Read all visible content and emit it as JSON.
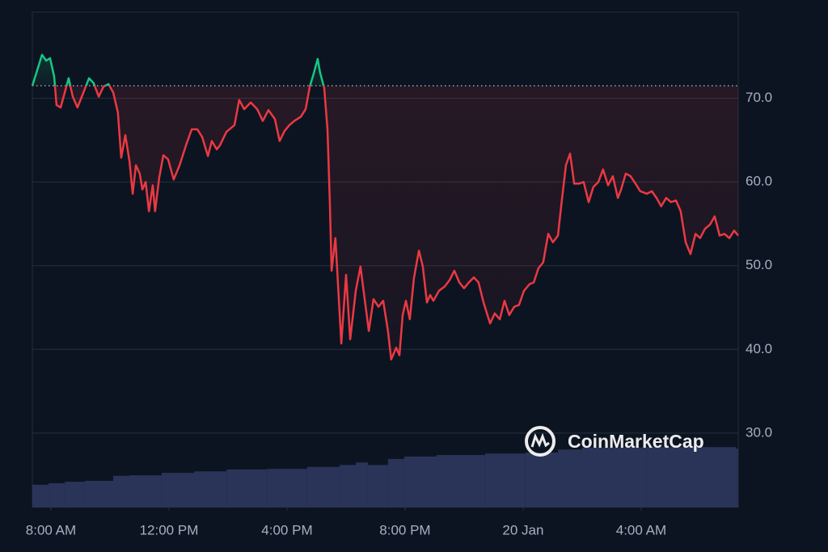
{
  "chart_data": {
    "type": "line",
    "x": [
      7.37,
      7.7,
      7.84,
      7.97,
      8.11,
      8.19,
      8.33,
      8.47,
      8.6,
      8.74,
      8.9,
      9.07,
      9.29,
      9.45,
      9.62,
      9.78,
      9.95,
      10.11,
      10.27,
      10.38,
      10.52,
      10.66,
      10.77,
      10.88,
      11.01,
      11.1,
      11.21,
      11.32,
      11.45,
      11.53,
      11.67,
      11.81,
      11.97,
      12.16,
      12.36,
      12.58,
      12.77,
      12.96,
      13.12,
      13.32,
      13.45,
      13.62,
      13.73,
      13.95,
      14.22,
      14.38,
      14.55,
      14.77,
      14.99,
      15.18,
      15.37,
      15.59,
      15.75,
      15.92,
      16.08,
      16.25,
      16.47,
      16.63,
      16.77,
      16.9,
      17.04,
      17.12,
      17.26,
      17.37,
      17.45,
      17.51,
      17.64,
      17.84,
      18.0,
      18.14,
      18.33,
      18.49,
      18.63,
      18.77,
      18.93,
      19.1,
      19.26,
      19.42,
      19.53,
      19.7,
      19.81,
      19.92,
      20.03,
      20.16,
      20.3,
      20.47,
      20.6,
      20.74,
      20.85,
      20.96,
      21.15,
      21.34,
      21.51,
      21.67,
      21.84,
      22.0,
      22.16,
      22.33,
      22.49,
      22.66,
      22.88,
      23.04,
      23.21,
      23.37,
      23.53,
      23.7,
      23.86,
      24.03,
      24.22,
      24.36,
      24.52,
      24.68,
      24.85,
      25.01,
      25.18,
      25.29,
      25.45,
      25.59,
      25.73,
      25.89,
      26.05,
      26.22,
      26.38,
      26.55,
      26.71,
      26.88,
      27.04,
      27.21,
      27.32,
      27.48,
      27.64,
      27.81,
      27.97,
      28.19,
      28.36,
      28.52,
      28.68,
      28.85,
      29.01,
      29.18,
      29.34,
      29.51,
      29.67,
      29.84,
      30.0,
      30.16,
      30.33,
      30.49,
      30.66,
      30.82,
      30.99,
      31.15,
      31.29
    ],
    "values": [
      71.5,
      75.2,
      74.5,
      74.8,
      72.6,
      69.2,
      68.9,
      70.7,
      72.4,
      70.2,
      68.9,
      70.4,
      72.4,
      71.8,
      70.2,
      71.4,
      71.7,
      70.7,
      68.3,
      62.9,
      65.6,
      62.5,
      58.6,
      62.0,
      61.0,
      59.1,
      60.0,
      56.5,
      59.6,
      56.5,
      60.5,
      63.2,
      62.7,
      60.3,
      62.0,
      64.4,
      66.3,
      66.3,
      65.4,
      63.1,
      64.9,
      63.9,
      64.4,
      66.0,
      66.8,
      69.8,
      68.7,
      69.5,
      68.7,
      67.3,
      68.6,
      67.5,
      64.9,
      66.1,
      66.8,
      67.3,
      67.8,
      68.7,
      71.4,
      72.9,
      74.7,
      73.1,
      71.2,
      66.3,
      57.6,
      49.4,
      53.3,
      40.7,
      48.9,
      41.2,
      47.0,
      49.9,
      46.0,
      42.2,
      46.0,
      45.1,
      45.8,
      42.2,
      38.8,
      40.2,
      39.3,
      44.1,
      45.8,
      43.6,
      48.5,
      51.8,
      49.9,
      45.6,
      46.5,
      45.8,
      47.0,
      47.5,
      48.3,
      49.4,
      48.0,
      47.3,
      48.0,
      48.6,
      48.0,
      45.6,
      43.1,
      44.3,
      43.6,
      45.8,
      44.1,
      45.1,
      45.3,
      47.0,
      47.8,
      48.0,
      49.7,
      50.4,
      53.8,
      52.8,
      53.6,
      57.1,
      62.0,
      63.4,
      59.8,
      59.8,
      60.0,
      57.6,
      59.4,
      60.0,
      61.5,
      59.6,
      60.7,
      58.1,
      59.1,
      61.0,
      60.7,
      59.8,
      58.9,
      58.6,
      58.9,
      58.1,
      57.1,
      58.1,
      57.6,
      57.8,
      56.5,
      52.8,
      51.4,
      53.8,
      53.3,
      54.4,
      54.9,
      55.9,
      53.6,
      53.8,
      53.3,
      54.2,
      53.6
    ],
    "baseline": 71.5,
    "colors": {
      "above": "#16c784",
      "below": "#ea3943"
    },
    "volume": {
      "axis": "y2",
      "color": "#2a3459",
      "x": [
        7.37,
        7.92,
        8.47,
        9.15,
        10.11,
        10.66,
        11.75,
        12.85,
        13.95,
        15.32,
        16.68,
        17.78,
        18.33,
        18.74,
        19.42,
        19.97,
        21.07,
        22.71,
        24.08,
        25.18,
        25.99,
        28.19,
        31.21
      ],
      "values": [
        4.6,
        4.9,
        5.2,
        5.4,
        6.4,
        6.5,
        7.0,
        7.3,
        7.7,
        7.8,
        8.2,
        8.6,
        9.1,
        8.6,
        9.8,
        10.3,
        10.6,
        10.9,
        11.1,
        11.7,
        12.1,
        12.2,
        11.9
      ]
    },
    "xlim": [
      7.37,
      31.29
    ],
    "ylim": [
      21.1,
      80.3
    ],
    "y2lim": [
      0,
      100
    ],
    "xticks": [
      {
        "value": 8,
        "label": "8:00 AM"
      },
      {
        "value": 12,
        "label": "12:00 PM"
      },
      {
        "value": 16,
        "label": "4:00 PM"
      },
      {
        "value": 20,
        "label": "8:00 PM"
      },
      {
        "value": 24,
        "label": "20 Jan"
      },
      {
        "value": 28,
        "label": "4:00 AM"
      }
    ],
    "yticks": [
      {
        "value": 30,
        "label": "30.0"
      },
      {
        "value": 40,
        "label": "40.0"
      },
      {
        "value": 50,
        "label": "50.0"
      },
      {
        "value": 60,
        "label": "60.0"
      },
      {
        "value": 70,
        "label": "70.0"
      }
    ],
    "grid": true,
    "watermark": "CoinMarketCap"
  }
}
